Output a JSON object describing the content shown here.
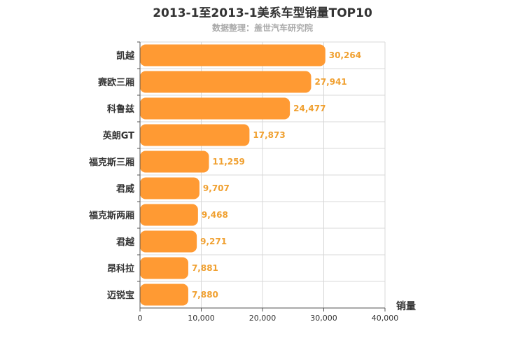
{
  "chart_data": {
    "type": "bar",
    "orientation": "horizontal",
    "title": "2013-1至2013-1美系车型销量TOP10",
    "subtitle": "数据整理：盖世汽车研究院",
    "categories": [
      "凯越",
      "赛欧三厢",
      "科鲁兹",
      "英朗GT",
      "福克斯三厢",
      "君威",
      "福克斯两厢",
      "君越",
      "昂科拉",
      "迈锐宝"
    ],
    "values": [
      30264,
      27941,
      24477,
      17873,
      11259,
      9707,
      9468,
      9271,
      7881,
      7880
    ],
    "value_labels": [
      "30,264",
      "27,941",
      "24,477",
      "17,873",
      "11,259",
      "9,707",
      "9,468",
      "9,271",
      "7,881",
      "7,880"
    ],
    "xlabel": "销量",
    "ylabel": "",
    "xlim": [
      0,
      40000
    ],
    "xticks": [
      0,
      10000,
      20000,
      30000,
      40000
    ],
    "xtick_labels": [
      "0",
      "10,000",
      "20,000",
      "30,000",
      "40,000"
    ],
    "grid": true,
    "bar_color": "#ff9a33",
    "value_label_color": "#f0a030"
  }
}
